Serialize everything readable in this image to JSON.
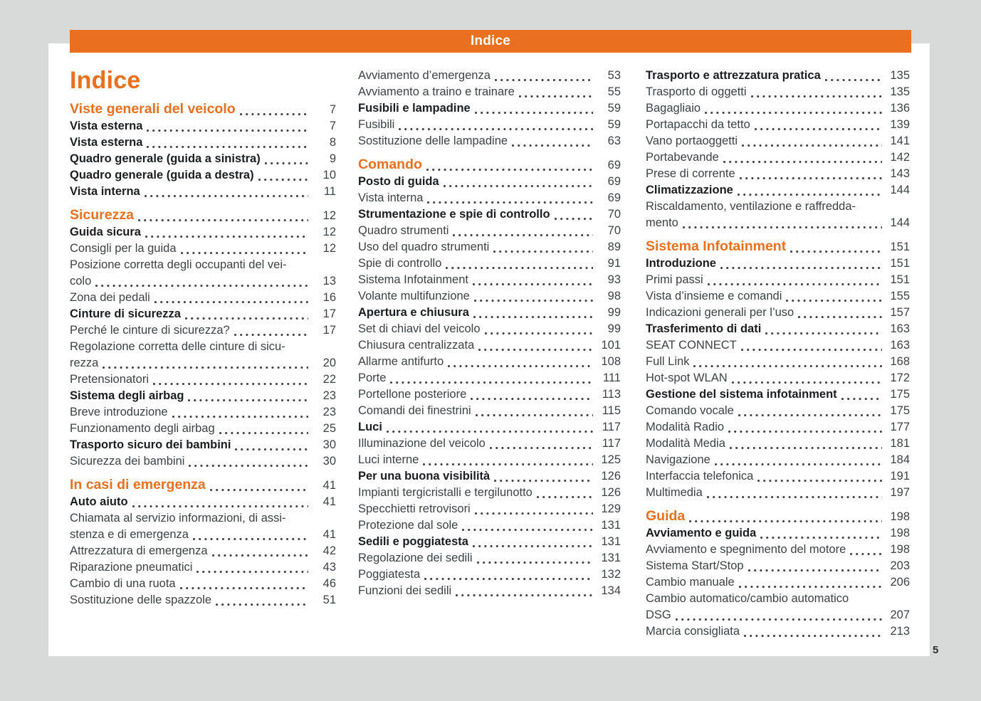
{
  "header": {
    "label": "Indice"
  },
  "title": "Indice",
  "page_number": "5",
  "colors": {
    "accent": "#e8701f",
    "text": "#3d4245",
    "text_bold": "#1b1e20",
    "paper": "#ffffff",
    "canvas": "#d8d9d9"
  },
  "columns": [
    {
      "entries": [
        {
          "style": "section",
          "lines": [
            "Viste generali del veicolo"
          ],
          "page": "7"
        },
        {
          "style": "b",
          "lines": [
            "Vista esterna"
          ],
          "page": "7"
        },
        {
          "style": "b",
          "lines": [
            "Vista esterna"
          ],
          "page": "8"
        },
        {
          "style": "b",
          "lines": [
            "Quadro generale (guida a sinistra)"
          ],
          "page": "9"
        },
        {
          "style": "b",
          "lines": [
            "Quadro generale (guida a destra)"
          ],
          "page": "10"
        },
        {
          "style": "b",
          "lines": [
            "Vista interna"
          ],
          "page": "11"
        },
        {
          "style": "section",
          "lines": [
            "Sicurezza"
          ],
          "page": "12"
        },
        {
          "style": "b",
          "lines": [
            "Guida sicura"
          ],
          "page": "12"
        },
        {
          "style": "n",
          "lines": [
            "Consigli per la guida"
          ],
          "page": "12"
        },
        {
          "style": "n",
          "lines": [
            "Posizione corretta degli occupanti del vei-",
            "colo"
          ],
          "page": "13"
        },
        {
          "style": "n",
          "lines": [
            "Zona dei pedali"
          ],
          "page": "16"
        },
        {
          "style": "b",
          "lines": [
            "Cinture di sicurezza"
          ],
          "page": "17"
        },
        {
          "style": "n",
          "lines": [
            "Perché le cinture di sicurezza?"
          ],
          "page": "17"
        },
        {
          "style": "n",
          "lines": [
            "Regolazione corretta delle cinture di sicu-",
            "rezza"
          ],
          "page": "20"
        },
        {
          "style": "n",
          "lines": [
            "Pretensionatori"
          ],
          "page": "22"
        },
        {
          "style": "b",
          "lines": [
            "Sistema degli airbag"
          ],
          "page": "23"
        },
        {
          "style": "n",
          "lines": [
            "Breve introduzione"
          ],
          "page": "23"
        },
        {
          "style": "n",
          "lines": [
            "Funzionamento degli airbag"
          ],
          "page": "25"
        },
        {
          "style": "b",
          "lines": [
            "Trasporto sicuro dei bambini"
          ],
          "page": "30"
        },
        {
          "style": "n",
          "lines": [
            "Sicurezza dei bambini"
          ],
          "page": "30"
        },
        {
          "style": "section",
          "lines": [
            "In casi di emergenza"
          ],
          "page": "41"
        },
        {
          "style": "b",
          "lines": [
            "Auto aiuto"
          ],
          "page": "41"
        },
        {
          "style": "n",
          "lines": [
            "Chiamata al servizio informazioni, di assi-",
            "stenza e di emergenza"
          ],
          "page": "41"
        },
        {
          "style": "n",
          "lines": [
            "Attrezzatura di emergenza"
          ],
          "page": "42"
        },
        {
          "style": "n",
          "lines": [
            "Riparazione pneumatici"
          ],
          "page": "43"
        },
        {
          "style": "n",
          "lines": [
            "Cambio di una ruota"
          ],
          "page": "46"
        },
        {
          "style": "n",
          "lines": [
            "Sostituzione delle spazzole"
          ],
          "page": "51"
        }
      ]
    },
    {
      "entries": [
        {
          "style": "n",
          "lines": [
            "Avviamento d’emergenza"
          ],
          "page": "53"
        },
        {
          "style": "n",
          "lines": [
            "Avviamento a traino e trainare"
          ],
          "page": "55"
        },
        {
          "style": "b",
          "lines": [
            "Fusibili e lampadine"
          ],
          "page": "59"
        },
        {
          "style": "n",
          "lines": [
            "Fusibili"
          ],
          "page": "59"
        },
        {
          "style": "n",
          "lines": [
            "Sostituzione delle lampadine"
          ],
          "page": "63"
        },
        {
          "style": "section",
          "lines": [
            "Comando"
          ],
          "page": "69"
        },
        {
          "style": "b",
          "lines": [
            "Posto di guida"
          ],
          "page": "69"
        },
        {
          "style": "n",
          "lines": [
            "Vista interna"
          ],
          "page": "69"
        },
        {
          "style": "b",
          "lines": [
            "Strumentazione e spie di controllo"
          ],
          "page": "70"
        },
        {
          "style": "n",
          "lines": [
            "Quadro strumenti"
          ],
          "page": "70"
        },
        {
          "style": "n",
          "lines": [
            "Uso del quadro strumenti"
          ],
          "page": "89"
        },
        {
          "style": "n",
          "lines": [
            "Spie di controllo"
          ],
          "page": "91"
        },
        {
          "style": "n",
          "lines": [
            "Sistema Infotainment"
          ],
          "page": "93"
        },
        {
          "style": "n",
          "lines": [
            "Volante multifunzione"
          ],
          "page": "98"
        },
        {
          "style": "b",
          "lines": [
            "Apertura e chiusura"
          ],
          "page": "99"
        },
        {
          "style": "n",
          "lines": [
            "Set di chiavi del veicolo"
          ],
          "page": "99"
        },
        {
          "style": "n",
          "lines": [
            "Chiusura centralizzata"
          ],
          "page": "101"
        },
        {
          "style": "n",
          "lines": [
            "Allarme antifurto"
          ],
          "page": "108"
        },
        {
          "style": "n",
          "lines": [
            "Porte"
          ],
          "page": "111"
        },
        {
          "style": "n",
          "lines": [
            "Portellone posteriore"
          ],
          "page": "113"
        },
        {
          "style": "n",
          "lines": [
            "Comandi dei finestrini"
          ],
          "page": "115"
        },
        {
          "style": "b",
          "lines": [
            "Luci"
          ],
          "page": "117"
        },
        {
          "style": "n",
          "lines": [
            "Illuminazione del veicolo"
          ],
          "page": "117"
        },
        {
          "style": "n",
          "lines": [
            "Luci interne"
          ],
          "page": "125"
        },
        {
          "style": "b",
          "lines": [
            "Per una buona visibilità"
          ],
          "page": "126"
        },
        {
          "style": "n",
          "lines": [
            "Impianti tergicristalli e tergilunotto"
          ],
          "page": "126"
        },
        {
          "style": "n",
          "lines": [
            "Specchietti retrovisori"
          ],
          "page": "129"
        },
        {
          "style": "n",
          "lines": [
            "Protezione dal sole"
          ],
          "page": "131"
        },
        {
          "style": "b",
          "lines": [
            "Sedili e poggiatesta"
          ],
          "page": "131"
        },
        {
          "style": "n",
          "lines": [
            "Regolazione dei sedili"
          ],
          "page": "131"
        },
        {
          "style": "n",
          "lines": [
            "Poggiatesta"
          ],
          "page": "132"
        },
        {
          "style": "n",
          "lines": [
            "Funzioni dei sedili"
          ],
          "page": "134"
        }
      ]
    },
    {
      "entries": [
        {
          "style": "b",
          "lines": [
            "Trasporto e attrezzatura pratica"
          ],
          "page": "135"
        },
        {
          "style": "n",
          "lines": [
            "Trasporto di oggetti"
          ],
          "page": "135"
        },
        {
          "style": "n",
          "lines": [
            "Bagagliaio"
          ],
          "page": "136"
        },
        {
          "style": "n",
          "lines": [
            "Portapacchi da tetto"
          ],
          "page": "139"
        },
        {
          "style": "n",
          "lines": [
            "Vano portaoggetti"
          ],
          "page": "141"
        },
        {
          "style": "n",
          "lines": [
            "Portabevande"
          ],
          "page": "142"
        },
        {
          "style": "n",
          "lines": [
            "Prese di corrente"
          ],
          "page": "143"
        },
        {
          "style": "b",
          "lines": [
            "Climatizzazione"
          ],
          "page": "144"
        },
        {
          "style": "n",
          "lines": [
            "Riscaldamento, ventilazione e raffredda-",
            "mento"
          ],
          "page": "144"
        },
        {
          "style": "section",
          "lines": [
            "Sistema Infotainment"
          ],
          "page": "151"
        },
        {
          "style": "b",
          "lines": [
            "Introduzione"
          ],
          "page": "151"
        },
        {
          "style": "n",
          "lines": [
            "Primi passi"
          ],
          "page": "151"
        },
        {
          "style": "n",
          "lines": [
            "Vista d’insieme e comandi"
          ],
          "page": "155"
        },
        {
          "style": "n",
          "lines": [
            "Indicazioni generali per l’uso"
          ],
          "page": "157"
        },
        {
          "style": "b",
          "lines": [
            "Trasferimento di dati"
          ],
          "page": "163"
        },
        {
          "style": "n",
          "lines": [
            "SEAT CONNECT"
          ],
          "page": "163"
        },
        {
          "style": "n",
          "lines": [
            "Full Link"
          ],
          "page": "168"
        },
        {
          "style": "n",
          "lines": [
            "Hot-spot WLAN"
          ],
          "page": "172"
        },
        {
          "style": "b",
          "lines": [
            "Gestione del sistema infotainment"
          ],
          "page": "175"
        },
        {
          "style": "n",
          "lines": [
            "Comando vocale"
          ],
          "page": "175"
        },
        {
          "style": "n",
          "lines": [
            "Modalità Radio"
          ],
          "page": "177"
        },
        {
          "style": "n",
          "lines": [
            "Modalità Media"
          ],
          "page": "181"
        },
        {
          "style": "n",
          "lines": [
            "Navigazione"
          ],
          "page": "184"
        },
        {
          "style": "n",
          "lines": [
            "Interfaccia telefonica"
          ],
          "page": "191"
        },
        {
          "style": "n",
          "lines": [
            "Multimedia"
          ],
          "page": "197"
        },
        {
          "style": "section",
          "lines": [
            "Guida"
          ],
          "page": "198"
        },
        {
          "style": "b",
          "lines": [
            "Avviamento e guida"
          ],
          "page": "198"
        },
        {
          "style": "n",
          "lines": [
            "Avviamento e spegnimento del motore"
          ],
          "page": "198"
        },
        {
          "style": "n",
          "lines": [
            "Sistema Start/Stop"
          ],
          "page": "203"
        },
        {
          "style": "n",
          "lines": [
            "Cambio manuale"
          ],
          "page": "206"
        },
        {
          "style": "n",
          "lines": [
            "Cambio automatico/cambio automatico",
            "DSG"
          ],
          "page": "207"
        },
        {
          "style": "n",
          "lines": [
            "Marcia consigliata"
          ],
          "page": "213"
        }
      ]
    }
  ]
}
